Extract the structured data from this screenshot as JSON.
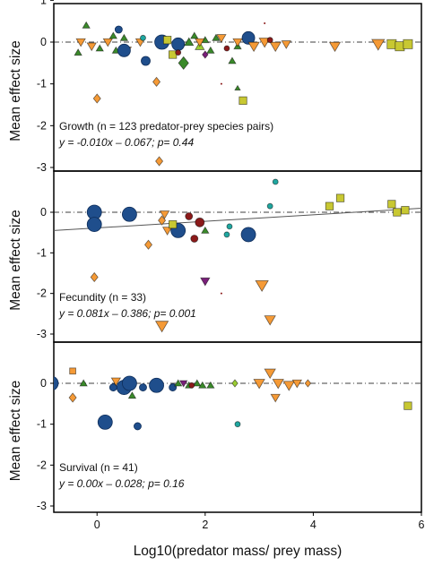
{
  "chart_data": {
    "type": "scatter",
    "xlabel": "Log10(predator mass/ prey mass)",
    "xlim": [
      -0.8,
      6.0
    ],
    "xticks": [
      "0",
      "2",
      "4",
      "6"
    ],
    "ylim": [
      -3.0,
      1.0
    ],
    "colors": {
      "orange": "#f59a36",
      "green": "#3a8a2a",
      "blue": "#1f4e8c",
      "teal": "#1fa7a0",
      "olive": "#c8c832",
      "darkred": "#8b1a1a",
      "purple": "#7a1f7a",
      "lightgreen": "#9acd32"
    },
    "panels": [
      {
        "ylabel": "Mean effect size",
        "yticks": [
          "1",
          "0",
          "-1",
          "-2",
          "-3"
        ],
        "ann_label": "Growth (n = 123 predator-prey species pairs)",
        "ann_eq": "y = -0.010x – 0.067; p= 0.44",
        "regression": {
          "slope": -0.01,
          "intercept": -0.067,
          "show": false
        },
        "points": [
          {
            "x": -0.3,
            "y": 0.0,
            "s": "tri-down",
            "c": "orange",
            "r": 5
          },
          {
            "x": -0.1,
            "y": -0.1,
            "s": "tri-down",
            "c": "orange",
            "r": 5
          },
          {
            "x": 0.2,
            "y": 0.0,
            "s": "tri-down",
            "c": "orange",
            "r": 5
          },
          {
            "x": -0.35,
            "y": -0.25,
            "s": "tri-up",
            "c": "green",
            "r": 4
          },
          {
            "x": -0.2,
            "y": 0.4,
            "s": "tri-up",
            "c": "green",
            "r": 4
          },
          {
            "x": 0.05,
            "y": -0.15,
            "s": "tri-up",
            "c": "green",
            "r": 4
          },
          {
            "x": 0.3,
            "y": 0.15,
            "s": "tri-up",
            "c": "green",
            "r": 4
          },
          {
            "x": 0.35,
            "y": -0.2,
            "s": "tri-up",
            "c": "green",
            "r": 4
          },
          {
            "x": 0.5,
            "y": 0.1,
            "s": "tri-up",
            "c": "green",
            "r": 4
          },
          {
            "x": 0.55,
            "y": -0.2,
            "s": "tri-down",
            "c": "orange",
            "r": 5
          },
          {
            "x": 0.8,
            "y": 0.0,
            "s": "tri-down",
            "c": "orange",
            "r": 5
          },
          {
            "x": 0.4,
            "y": 0.3,
            "s": "circle",
            "c": "blue",
            "r": 4
          },
          {
            "x": 0.5,
            "y": -0.2,
            "s": "circle",
            "c": "blue",
            "r": 7
          },
          {
            "x": 0.9,
            "y": -0.45,
            "s": "circle",
            "c": "blue",
            "r": 5
          },
          {
            "x": 1.2,
            "y": 0.0,
            "s": "circle",
            "c": "blue",
            "r": 8
          },
          {
            "x": 1.5,
            "y": -0.05,
            "s": "circle",
            "c": "blue",
            "r": 7
          },
          {
            "x": 2.8,
            "y": 0.1,
            "s": "circle",
            "c": "blue",
            "r": 7
          },
          {
            "x": 0.85,
            "y": 0.1,
            "s": "circle",
            "c": "teal",
            "r": 3
          },
          {
            "x": 1.3,
            "y": 0.05,
            "s": "square",
            "c": "olive",
            "r": 5
          },
          {
            "x": 1.4,
            "y": -0.3,
            "s": "square",
            "c": "olive",
            "r": 5
          },
          {
            "x": 1.6,
            "y": -0.5,
            "s": "diamond",
            "c": "green",
            "r": 7
          },
          {
            "x": 1.7,
            "y": 0.0,
            "s": "tri-up",
            "c": "green",
            "r": 5
          },
          {
            "x": 1.8,
            "y": 0.15,
            "s": "tri-up",
            "c": "green",
            "r": 4
          },
          {
            "x": 1.9,
            "y": -0.1,
            "s": "tri-up",
            "c": "lightgreen",
            "r": 5
          },
          {
            "x": 2.0,
            "y": 0.05,
            "s": "tri-up",
            "c": "green",
            "r": 4
          },
          {
            "x": 2.1,
            "y": -0.2,
            "s": "tri-up",
            "c": "green",
            "r": 4
          },
          {
            "x": 2.2,
            "y": 0.1,
            "s": "tri-up",
            "c": "green",
            "r": 4
          },
          {
            "x": 2.5,
            "y": -0.45,
            "s": "tri-up",
            "c": "green",
            "r": 4
          },
          {
            "x": 2.6,
            "y": -0.1,
            "s": "tri-up",
            "c": "green",
            "r": 4
          },
          {
            "x": 1.9,
            "y": 0.0,
            "s": "tri-down",
            "c": "orange",
            "r": 5
          },
          {
            "x": 2.3,
            "y": 0.1,
            "s": "tri-down",
            "c": "orange",
            "r": 5
          },
          {
            "x": 2.6,
            "y": 0.0,
            "s": "tri-down",
            "c": "orange",
            "r": 5
          },
          {
            "x": 2.9,
            "y": -0.1,
            "s": "tri-down",
            "c": "orange",
            "r": 6
          },
          {
            "x": 3.1,
            "y": 0.0,
            "s": "tri-down",
            "c": "orange",
            "r": 6
          },
          {
            "x": 3.3,
            "y": -0.1,
            "s": "tri-down",
            "c": "orange",
            "r": 6
          },
          {
            "x": 3.5,
            "y": -0.05,
            "s": "tri-down",
            "c": "orange",
            "r": 5
          },
          {
            "x": 4.4,
            "y": -0.1,
            "s": "tri-down",
            "c": "orange",
            "r": 6
          },
          {
            "x": 5.2,
            "y": -0.05,
            "s": "tri-down",
            "c": "orange",
            "r": 7
          },
          {
            "x": 2.0,
            "y": -0.3,
            "s": "diamond",
            "c": "purple",
            "r": 4
          },
          {
            "x": 1.5,
            "y": -0.25,
            "s": "circle",
            "c": "darkred",
            "r": 3
          },
          {
            "x": 2.4,
            "y": -0.15,
            "s": "circle",
            "c": "darkred",
            "r": 3
          },
          {
            "x": 3.2,
            "y": 0.05,
            "s": "circle",
            "c": "darkred",
            "r": 3
          },
          {
            "x": 0.0,
            "y": -1.35,
            "s": "diamond",
            "c": "orange",
            "r": 5
          },
          {
            "x": 1.1,
            "y": -0.95,
            "s": "diamond",
            "c": "orange",
            "r": 5
          },
          {
            "x": 2.7,
            "y": -1.4,
            "s": "square",
            "c": "olive",
            "r": 5
          },
          {
            "x": 2.6,
            "y": -1.1,
            "s": "tri-up",
            "c": "green",
            "r": 3
          },
          {
            "x": 1.15,
            "y": -2.85,
            "s": "diamond",
            "c": "orange",
            "r": 5
          },
          {
            "x": 5.45,
            "y": -0.05,
            "s": "square",
            "c": "olive",
            "r": 6
          },
          {
            "x": 5.6,
            "y": -0.1,
            "s": "square",
            "c": "olive",
            "r": 6
          },
          {
            "x": 5.75,
            "y": -0.05,
            "s": "square",
            "c": "olive",
            "r": 6
          },
          {
            "x": 3.1,
            "y": 0.45,
            "s": "circle",
            "c": "darkred",
            "r": 1
          },
          {
            "x": 2.3,
            "y": -1.0,
            "s": "circle",
            "c": "darkred",
            "r": 1
          }
        ]
      },
      {
        "ylabel": "Mean effect size",
        "yticks": [
          "0",
          "-1",
          "-2",
          "-3"
        ],
        "ann_label": "Fecundity (n = 33)",
        "ann_eq": "y = 0.081x – 0.386; p= 0.001",
        "regression": {
          "slope": 0.081,
          "intercept": -0.386,
          "show": true
        },
        "points": [
          {
            "x": -0.05,
            "y": 0.0,
            "s": "circle",
            "c": "blue",
            "r": 8
          },
          {
            "x": -0.05,
            "y": -0.3,
            "s": "circle",
            "c": "blue",
            "r": 8
          },
          {
            "x": 0.6,
            "y": -0.05,
            "s": "circle",
            "c": "blue",
            "r": 8
          },
          {
            "x": 1.5,
            "y": -0.45,
            "s": "circle",
            "c": "blue",
            "r": 8
          },
          {
            "x": 2.8,
            "y": -0.55,
            "s": "circle",
            "c": "blue",
            "r": 8
          },
          {
            "x": 1.2,
            "y": -0.2,
            "s": "diamond",
            "c": "orange",
            "r": 5
          },
          {
            "x": 1.25,
            "y": -0.05,
            "s": "tri-down",
            "c": "orange",
            "r": 5
          },
          {
            "x": 1.3,
            "y": -0.45,
            "s": "tri-down",
            "c": "orange",
            "r": 5
          },
          {
            "x": 1.4,
            "y": -0.3,
            "s": "square",
            "c": "olive",
            "r": 5
          },
          {
            "x": 0.95,
            "y": -0.8,
            "s": "diamond",
            "c": "orange",
            "r": 5
          },
          {
            "x": 1.9,
            "y": -0.25,
            "s": "circle",
            "c": "darkred",
            "r": 5
          },
          {
            "x": 1.7,
            "y": -0.1,
            "s": "circle",
            "c": "darkred",
            "r": 4
          },
          {
            "x": 1.8,
            "y": -0.65,
            "s": "circle",
            "c": "darkred",
            "r": 4
          },
          {
            "x": 2.0,
            "y": -0.45,
            "s": "tri-up",
            "c": "green",
            "r": 4
          },
          {
            "x": 2.4,
            "y": -0.55,
            "s": "circle",
            "c": "teal",
            "r": 3
          },
          {
            "x": 2.45,
            "y": -0.35,
            "s": "circle",
            "c": "teal",
            "r": 3
          },
          {
            "x": 3.2,
            "y": 0.15,
            "s": "circle",
            "c": "teal",
            "r": 3
          },
          {
            "x": 3.3,
            "y": 0.75,
            "s": "circle",
            "c": "teal",
            "r": 3
          },
          {
            "x": 2.0,
            "y": -1.7,
            "s": "tri-down",
            "c": "purple",
            "r": 5
          },
          {
            "x": -0.05,
            "y": -1.6,
            "s": "diamond",
            "c": "orange",
            "r": 5
          },
          {
            "x": 1.2,
            "y": -2.8,
            "s": "tri-down",
            "c": "orange",
            "r": 7
          },
          {
            "x": 3.2,
            "y": -2.65,
            "s": "tri-down",
            "c": "orange",
            "r": 6
          },
          {
            "x": 3.05,
            "y": -1.8,
            "s": "tri-down",
            "c": "orange",
            "r": 7
          },
          {
            "x": 4.3,
            "y": 0.15,
            "s": "square",
            "c": "olive",
            "r": 5
          },
          {
            "x": 4.5,
            "y": 0.35,
            "s": "square",
            "c": "olive",
            "r": 5
          },
          {
            "x": 5.45,
            "y": 0.2,
            "s": "square",
            "c": "olive",
            "r": 5
          },
          {
            "x": 5.55,
            "y": 0.0,
            "s": "square",
            "c": "olive",
            "r": 5
          },
          {
            "x": 5.7,
            "y": 0.05,
            "s": "square",
            "c": "olive",
            "r": 5
          },
          {
            "x": 2.3,
            "y": -2.0,
            "s": "circle",
            "c": "darkred",
            "r": 1
          }
        ]
      },
      {
        "ylabel": "Mean effect size",
        "yticks": [
          "0",
          "-1",
          "-2",
          "-3"
        ],
        "ann_label": "Survival  (n = 41)",
        "ann_eq": "y = 0.00x – 0.028; p= 0.16",
        "regression": {
          "slope": 0.0,
          "intercept": -0.028,
          "show": false
        },
        "points": [
          {
            "x": -0.85,
            "y": 0.0,
            "s": "circle",
            "c": "blue",
            "r": 8
          },
          {
            "x": 0.15,
            "y": -0.95,
            "s": "circle",
            "c": "blue",
            "r": 8
          },
          {
            "x": 0.5,
            "y": -0.1,
            "s": "circle",
            "c": "blue",
            "r": 8
          },
          {
            "x": 0.6,
            "y": 0.0,
            "s": "circle",
            "c": "blue",
            "r": 8
          },
          {
            "x": 1.1,
            "y": -0.05,
            "s": "circle",
            "c": "blue",
            "r": 8
          },
          {
            "x": 0.3,
            "y": -0.1,
            "s": "circle",
            "c": "blue",
            "r": 4
          },
          {
            "x": 0.85,
            "y": -0.1,
            "s": "circle",
            "c": "blue",
            "r": 4
          },
          {
            "x": 1.4,
            "y": -0.1,
            "s": "circle",
            "c": "blue",
            "r": 4
          },
          {
            "x": 0.75,
            "y": -1.05,
            "s": "circle",
            "c": "blue",
            "r": 4
          },
          {
            "x": -0.45,
            "y": 0.3,
            "s": "square",
            "c": "orange",
            "r": 4
          },
          {
            "x": -0.45,
            "y": -0.35,
            "s": "diamond",
            "c": "orange",
            "r": 5
          },
          {
            "x": -0.25,
            "y": 0.0,
            "s": "tri-up",
            "c": "green",
            "r": 4
          },
          {
            "x": 0.35,
            "y": 0.05,
            "s": "tri-down",
            "c": "orange",
            "r": 5
          },
          {
            "x": 0.65,
            "y": -0.3,
            "s": "tri-up",
            "c": "green",
            "r": 4
          },
          {
            "x": 1.5,
            "y": 0.0,
            "s": "tri-up",
            "c": "green",
            "r": 4
          },
          {
            "x": 1.7,
            "y": -0.05,
            "s": "tri-up",
            "c": "green",
            "r": 4
          },
          {
            "x": 1.85,
            "y": 0.0,
            "s": "tri-up",
            "c": "green",
            "r": 4
          },
          {
            "x": 1.95,
            "y": -0.05,
            "s": "tri-up",
            "c": "green",
            "r": 4
          },
          {
            "x": 2.1,
            "y": -0.05,
            "s": "tri-up",
            "c": "green",
            "r": 4
          },
          {
            "x": 1.6,
            "y": 0.0,
            "s": "tri-down",
            "c": "purple",
            "r": 4
          },
          {
            "x": 1.75,
            "y": -0.05,
            "s": "circle",
            "c": "darkred",
            "r": 3
          },
          {
            "x": 2.55,
            "y": 0.0,
            "s": "diamond",
            "c": "lightgreen",
            "r": 4
          },
          {
            "x": 2.6,
            "y": -1.0,
            "s": "circle",
            "c": "teal",
            "r": 3
          },
          {
            "x": 3.2,
            "y": 0.25,
            "s": "tri-down",
            "c": "orange",
            "r": 6
          },
          {
            "x": 3.0,
            "y": 0.0,
            "s": "tri-down",
            "c": "orange",
            "r": 6
          },
          {
            "x": 3.35,
            "y": 0.0,
            "s": "tri-down",
            "c": "orange",
            "r": 6
          },
          {
            "x": 3.55,
            "y": -0.05,
            "s": "tri-down",
            "c": "orange",
            "r": 6
          },
          {
            "x": 3.7,
            "y": 0.0,
            "s": "tri-down",
            "c": "orange",
            "r": 5
          },
          {
            "x": 3.3,
            "y": -0.35,
            "s": "tri-down",
            "c": "orange",
            "r": 5
          },
          {
            "x": 3.9,
            "y": 0.0,
            "s": "diamond",
            "c": "orange",
            "r": 4
          },
          {
            "x": 5.75,
            "y": -0.55,
            "s": "square",
            "c": "olive",
            "r": 5
          }
        ]
      }
    ]
  }
}
